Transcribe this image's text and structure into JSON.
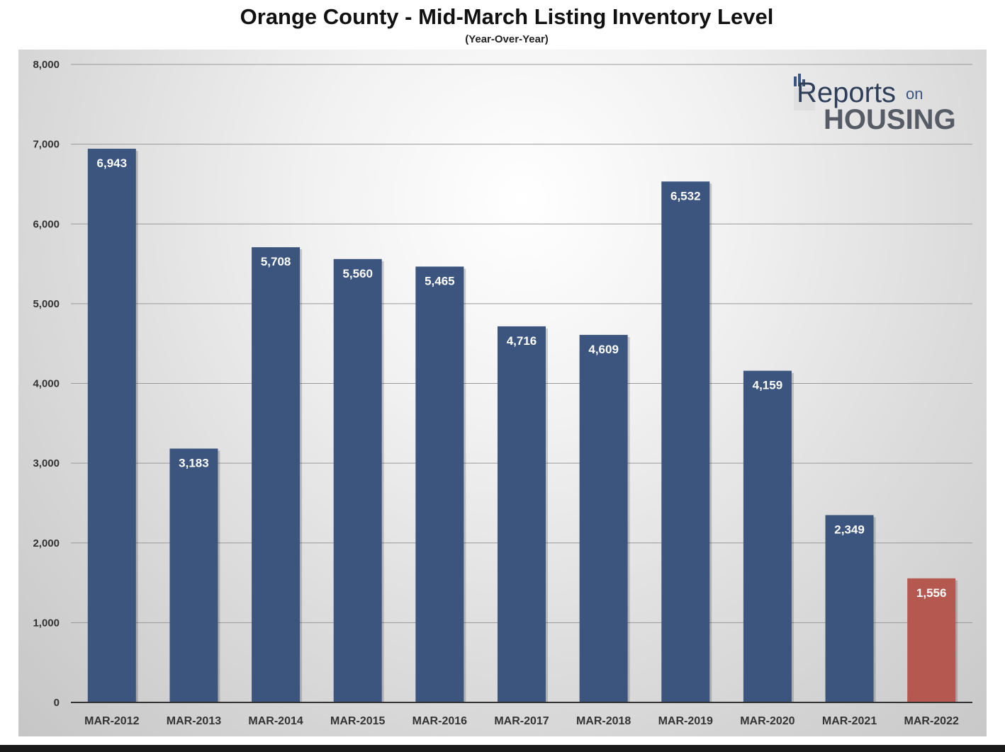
{
  "chart_data": {
    "type": "bar",
    "title": "Orange County - Mid-March Listing Inventory Level",
    "subtitle": "(Year-Over-Year)",
    "categories": [
      "MAR-2012",
      "MAR-2013",
      "MAR-2014",
      "MAR-2015",
      "MAR-2016",
      "MAR-2017",
      "MAR-2018",
      "MAR-2019",
      "MAR-2020",
      "MAR-2021",
      "MAR-2022"
    ],
    "values": [
      6943,
      3183,
      5708,
      5560,
      5465,
      4716,
      4609,
      6532,
      4159,
      2349,
      1556
    ],
    "data_labels": [
      "6,943",
      "3,183",
      "5,708",
      "5,560",
      "5,465",
      "4,716",
      "4,609",
      "6,532",
      "4,159",
      "2,349",
      "1,556"
    ],
    "yticks": [
      0,
      1000,
      2000,
      3000,
      4000,
      5000,
      6000,
      7000,
      8000
    ],
    "ytick_labels": [
      "0",
      "1,000",
      "2,000",
      "3,000",
      "4,000",
      "5,000",
      "6,000",
      "7,000",
      "8,000"
    ],
    "ylim": [
      0,
      8000
    ],
    "xlabel": "",
    "ylabel": "",
    "grid": true,
    "legend": "none",
    "colors": {
      "bar": "#3b557e",
      "highlight_bar": "#b5584f",
      "gridline": "#9a9a9a",
      "axis": "#333333"
    },
    "highlight_index": 10
  },
  "logo": {
    "text_main": "Reports",
    "text_small": "on",
    "text_bottom": "HOUSING"
  }
}
